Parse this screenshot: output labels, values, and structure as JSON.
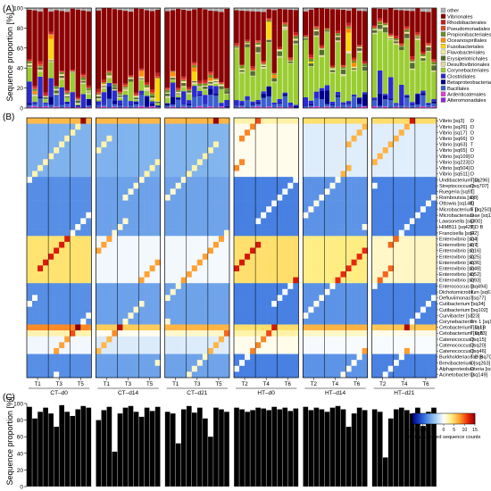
{
  "panels": {
    "a": {
      "label": "(A)",
      "ylabel": "Sequence proportion [%]"
    },
    "b": {
      "label": "(B)"
    },
    "c": {
      "label": "(C)",
      "ylabel": "Sequence proportion [%]"
    }
  },
  "groups": [
    "CT–d0",
    "CT–d14",
    "CT–d21",
    "HT–d0",
    "HT–d14",
    "HT–d21"
  ],
  "subgroup_ticks": [
    [
      "T1",
      "T3",
      "T5"
    ],
    [
      "T1",
      "T3",
      "T5"
    ],
    [
      "T1",
      "T3",
      "T5"
    ],
    [
      "T2",
      "T4",
      "T6"
    ],
    [
      "T2",
      "T4",
      "T6"
    ],
    [
      "T2",
      "T4",
      "T6"
    ]
  ],
  "samples_per_group": [
    12,
    12,
    12,
    12,
    12,
    12
  ],
  "chart_data": [
    {
      "type": "bar",
      "stacked": true,
      "panel": "A",
      "ylabel": "Sequence proportion [%]",
      "ylim": [
        0,
        100
      ],
      "yticks": [
        0,
        20,
        40,
        60,
        80,
        100
      ],
      "legend_position": "right",
      "series": [
        {
          "name": "other",
          "color": "#b0b0b0"
        },
        {
          "name": "Vibrionales",
          "color": "#8b0000"
        },
        {
          "name": "Rhodobacterales",
          "color": "#c81e1e"
        },
        {
          "name": "Pseudomonadales",
          "color": "#e34a2a"
        },
        {
          "name": "Propionibacteriales",
          "color": "#6b8e23"
        },
        {
          "name": "Oceanospirillales",
          "color": "#ff8c00"
        },
        {
          "name": "Fusobacteriales",
          "color": "#ffd700"
        },
        {
          "name": "Flavobacteriales",
          "color": "#f5e79e"
        },
        {
          "name": "Erysipelotrichales",
          "color": "#556b2f"
        },
        {
          "name": "Desulfovibrionales",
          "color": "#e0d8a0"
        },
        {
          "name": "Corynebacteriales",
          "color": "#9acd32"
        },
        {
          "name": "Clostridiales",
          "color": "#2a2ad0"
        },
        {
          "name": "Betaproteobacteriales",
          "color": "#00008b"
        },
        {
          "name": "Bacillales",
          "color": "#3a5fcd"
        },
        {
          "name": "Ardenticatenales",
          "color": "#dd44dd"
        },
        {
          "name": "Alteromonadales",
          "color": "#8a2be2"
        }
      ]
    },
    {
      "type": "heatmap",
      "panel": "B",
      "colorbar": {
        "label": "clr–transformed sequence counts",
        "range": [
          -15,
          15
        ],
        "ticks": [
          -15,
          -10,
          -5,
          0,
          5,
          10,
          15
        ]
      },
      "rows": [
        {
          "taxon": "Vibrio [sq3]",
          "tags": "D"
        },
        {
          "taxon": "Vibrio [sq26]",
          "tags": "D"
        },
        {
          "taxon": "Vibrio [sq17]",
          "tags": "D"
        },
        {
          "taxon": "Vibrio [sq66]",
          "tags": "D"
        },
        {
          "taxon": "Vibrio [sq63]",
          "tags": "T"
        },
        {
          "taxon": "Vibrio [sq65]",
          "tags": "D"
        },
        {
          "taxon": "Vibrio [sq109]",
          "tags": "D"
        },
        {
          "taxon": "Vibrio [sq223]",
          "tags": "D"
        },
        {
          "taxon": "Vibrio [sq504]",
          "tags": "D"
        },
        {
          "taxon": "Vibrio [sq511]",
          "tags": "D"
        },
        {
          "taxon": "Undibacterium [sq296]",
          "tags": "T D"
        },
        {
          "taxon": "Streptococcus [sq707]",
          "tags": "D"
        },
        {
          "taxon": "Ruegeria [sq91]",
          "tags": "T"
        },
        {
          "taxon": "Romboutsia [sq8]",
          "tags": "D"
        },
        {
          "taxon": "Ottowia [sq148]",
          "tags": "D"
        },
        {
          "taxon": "Microbacterium [sq250]",
          "tags": "T D"
        },
        {
          "taxon": "Microbacteriaceae [sq1104]",
          "tags": "D"
        },
        {
          "taxon": "Lawsonella [sq300]",
          "tags": "D"
        },
        {
          "taxon": "HIMB11 [sq428]",
          "tags": "T D B"
        },
        {
          "taxon": "Francisella [sq42]",
          "tags": "D"
        },
        {
          "taxon": "Enterovibrio [sq4]",
          "tags": "D I"
        },
        {
          "taxon": "Enterovibrio [sq7]",
          "tags": "D I"
        },
        {
          "taxon": "Enterovibrio [sq16]",
          "tags": "D"
        },
        {
          "taxon": "Enterovibrio [sq25]",
          "tags": "D"
        },
        {
          "taxon": "Enterovibrio [sq36]",
          "tags": "D"
        },
        {
          "taxon": "Enterovibrio [sq48]",
          "tags": "D"
        },
        {
          "taxon": "Enterovibrio [sq52]",
          "tags": "D"
        },
        {
          "taxon": "Enterovibrio [sq93]",
          "tags": "D"
        },
        {
          "taxon": "Enterococcus [sq494]",
          "tags": "D"
        },
        {
          "taxon": "Dichotomicrobium [sq617]",
          "tags": "T"
        },
        {
          "taxon": "Defluviimonas [sq77]",
          "tags": "T"
        },
        {
          "taxon": "Cutibacterium [sq34]",
          "tags": "T"
        },
        {
          "taxon": "Cutibacterium [sq102]",
          "tags": "T"
        },
        {
          "taxon": "Curvibacter [sq23]",
          "tags": "T"
        },
        {
          "taxon": "Corynebacterium 1 [sq115]",
          "tags": "T"
        },
        {
          "taxon": "Cetobacterium [sq1]",
          "tags": "T D I B"
        },
        {
          "taxon": "Cetobacterium [sq23]",
          "tags": "T D B"
        },
        {
          "taxon": "Catenococcus [sq15]",
          "tags": "D"
        },
        {
          "taxon": "Catenococcus [sq20]",
          "tags": "D"
        },
        {
          "taxon": "Catenococcus [sq46]",
          "tags": "D"
        },
        {
          "taxon": "Burkholderiaceae [sq700]",
          "tags": "T D B"
        },
        {
          "taxon": "Brevibacterium [sq263]",
          "tags": "D"
        },
        {
          "taxon": "Alphaproteobacteria [sq800]",
          "tags": "D"
        },
        {
          "taxon": "Acinetobacter [sq149]",
          "tags": "D"
        }
      ]
    },
    {
      "type": "bar",
      "panel": "C",
      "ylabel": "Sequence proportion [%]",
      "ylim": [
        0,
        100
      ],
      "yticks": [
        0,
        20,
        40,
        60,
        80,
        100
      ],
      "color": "#000000",
      "values": [
        96,
        82,
        90,
        95,
        88,
        72,
        98,
        90,
        85,
        93,
        97,
        95,
        80,
        92,
        96,
        42,
        88,
        95,
        97,
        90,
        84,
        95,
        91,
        96,
        90,
        88,
        52,
        93,
        97,
        89,
        95,
        82,
        60,
        95,
        93,
        90,
        95,
        93,
        90,
        92,
        95,
        94,
        92,
        96,
        93,
        95,
        91,
        94,
        96,
        92,
        95,
        93,
        90,
        95,
        97,
        93,
        72,
        88,
        95,
        92,
        93,
        90,
        35,
        82,
        93,
        95,
        92,
        88,
        95,
        73,
        90,
        95
      ]
    }
  ]
}
